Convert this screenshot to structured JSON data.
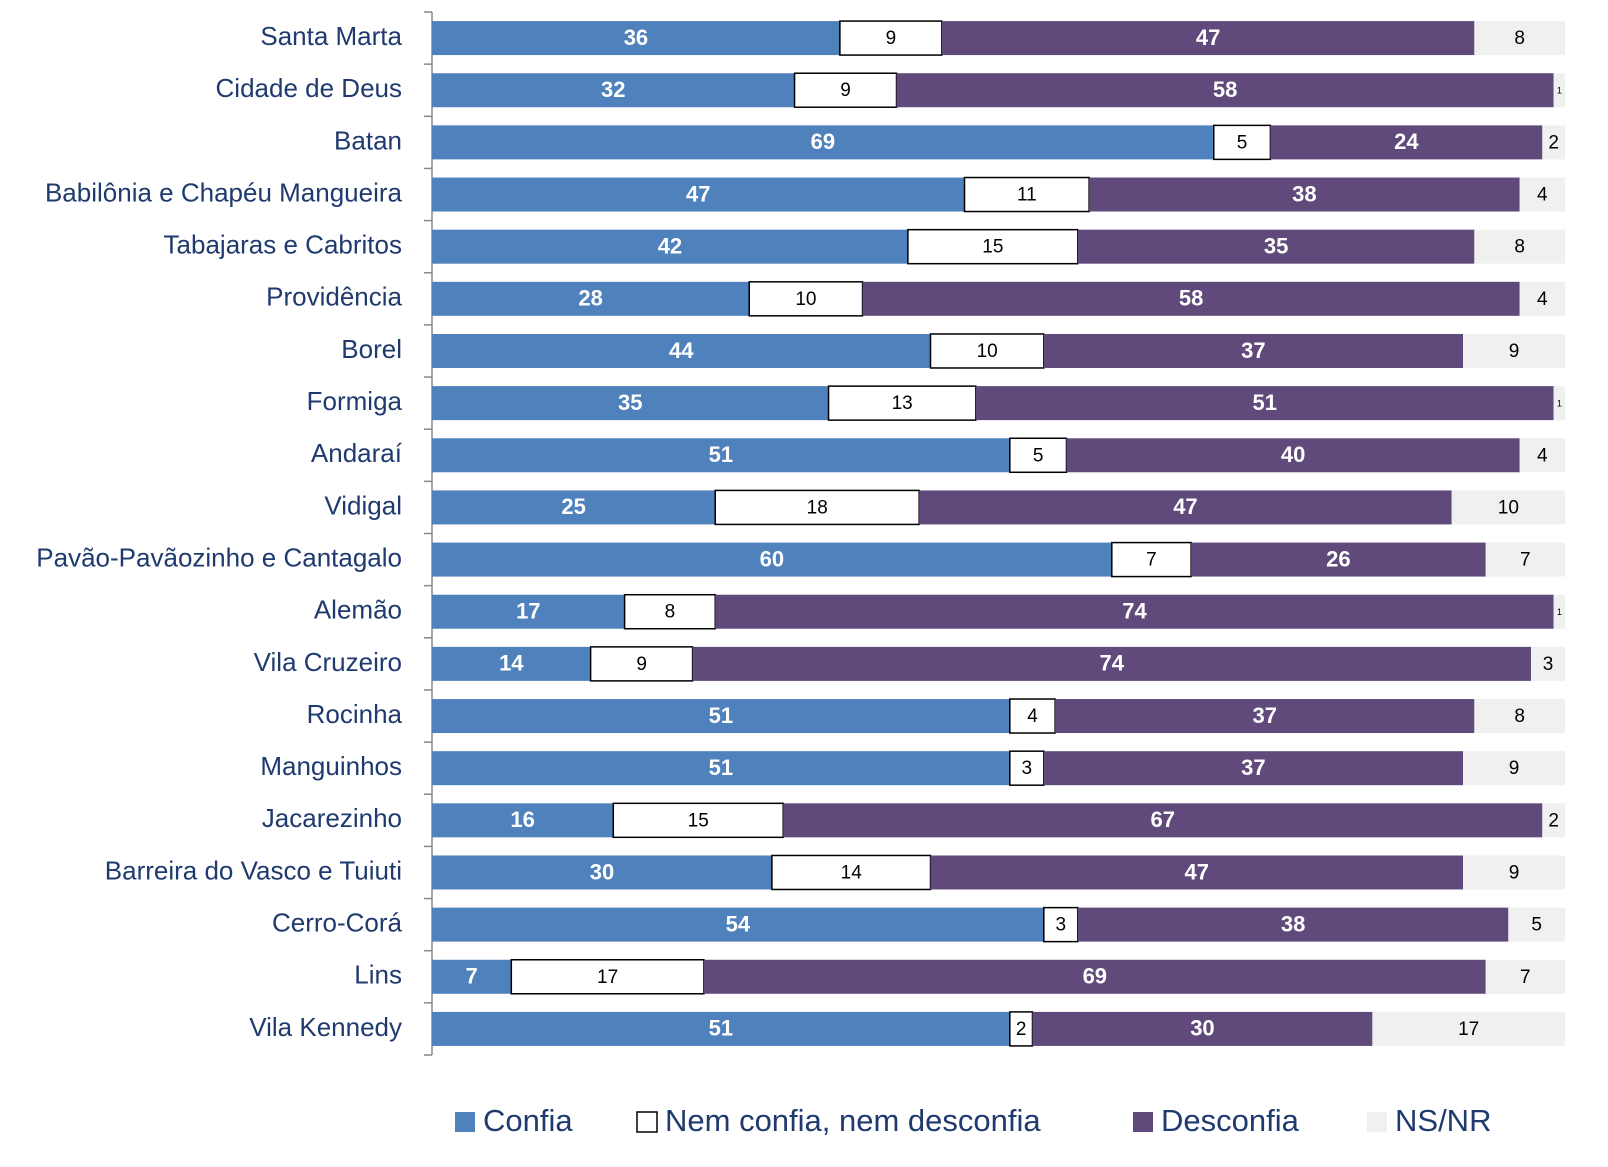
{
  "chart_data": {
    "type": "stacked-bar-horizontal",
    "categories": [
      "Santa Marta",
      "Cidade de Deus",
      "Batan",
      "Babilônia e Chapéu Mangueira",
      "Tabajaras e Cabritos",
      "Providência",
      "Borel",
      "Formiga",
      "Andaraí",
      "Vidigal",
      "Pavão-Pavãozinho e Cantagalo",
      "Alemão",
      "Vila Cruzeiro",
      "Rocinha",
      "Manguinhos",
      "Jacarezinho",
      "Barreira do Vasco e Tuiuti",
      "Cerro-Corá",
      "Lins",
      "Vila Kennedy"
    ],
    "series": [
      {
        "name": "Confia",
        "color": "#4f81bd",
        "values": [
          36,
          32,
          69,
          47,
          42,
          28,
          44,
          35,
          51,
          25,
          60,
          17,
          14,
          51,
          51,
          16,
          30,
          54,
          7,
          51
        ]
      },
      {
        "name": "Nem confia, nem desconfia",
        "color": "#ffffff",
        "values": [
          9,
          9,
          5,
          11,
          15,
          10,
          10,
          13,
          5,
          18,
          7,
          8,
          9,
          4,
          3,
          15,
          14,
          3,
          17,
          2
        ]
      },
      {
        "name": "Desconfia",
        "color": "#604a7b",
        "values": [
          47,
          58,
          24,
          38,
          35,
          58,
          37,
          51,
          40,
          47,
          26,
          74,
          74,
          37,
          37,
          67,
          47,
          38,
          69,
          30
        ]
      },
      {
        "name": "NS/NR",
        "color": "#f0f0f0",
        "values": [
          8,
          1,
          2,
          4,
          8,
          4,
          9,
          1,
          4,
          10,
          7,
          1,
          3,
          8,
          9,
          2,
          9,
          5,
          7,
          17
        ]
      }
    ],
    "xlim": [
      0,
      100
    ],
    "legend": "bottom"
  }
}
